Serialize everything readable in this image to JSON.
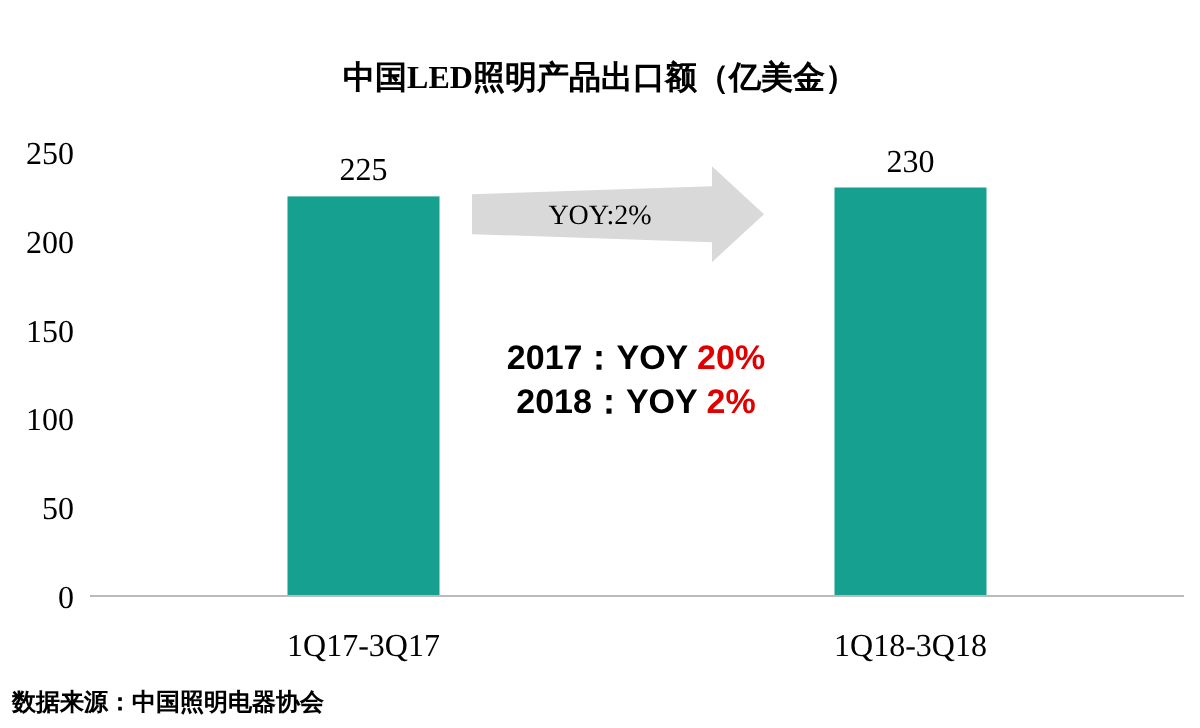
{
  "chart_data": {
    "type": "bar",
    "title": "中国LED照明产品出口额（亿美金）",
    "categories": [
      "1Q17-3Q17",
      "1Q18-3Q18"
    ],
    "values": [
      225,
      230
    ],
    "color": "#16a08f",
    "data_labels": true,
    "ylim": [
      0,
      250
    ],
    "yticks": [
      0,
      50,
      100,
      150,
      200,
      250
    ],
    "grid": false,
    "annotations": [
      "YOY:2%",
      "2017：YOY 20%",
      "2018：YOY 2%",
      "数据来源：中国照明电器协会"
    ]
  }
}
